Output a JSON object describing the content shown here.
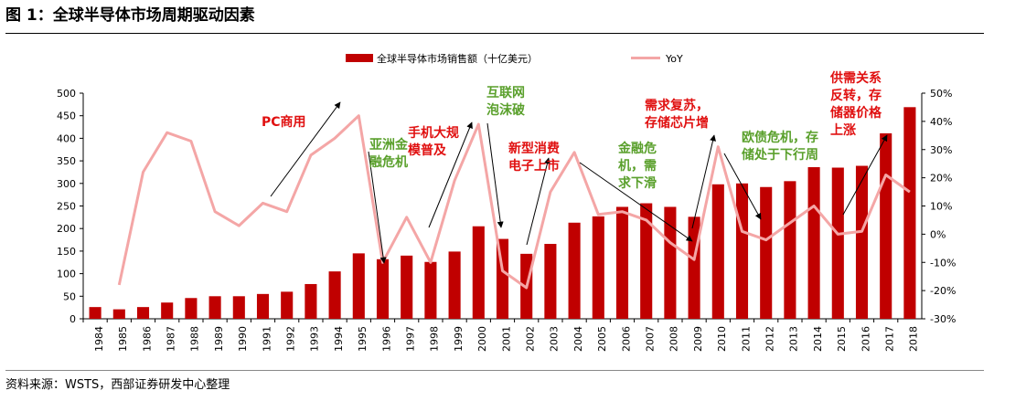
{
  "header": {
    "title": "图 1：全球半导体市场周期驱动因素"
  },
  "footer": {
    "source": "资料来源：WSTS，西部证券研发中心整理"
  },
  "colors": {
    "bar": "#c00000",
    "line": "#f4a6a6",
    "annotation_red": "#e01010",
    "annotation_green": "#5aa02c"
  },
  "chart_data": {
    "type": "bar",
    "categories": [
      "1984",
      "1985",
      "1986",
      "1987",
      "1988",
      "1989",
      "1990",
      "1991",
      "1992",
      "1993",
      "1994",
      "1995",
      "1996",
      "1997",
      "1998",
      "1999",
      "2000",
      "2001",
      "2002",
      "2003",
      "2004",
      "2005",
      "2006",
      "2007",
      "2008",
      "2009",
      "2010",
      "2011",
      "2012",
      "2013",
      "2014",
      "2015",
      "2016",
      "2017",
      "2018"
    ],
    "series": [
      {
        "name": "全球半导体市场销售额（十亿美元）",
        "type": "bar",
        "axis": "left",
        "values": [
          26,
          21,
          26,
          36,
          46,
          50,
          50,
          55,
          60,
          77,
          105,
          145,
          132,
          140,
          126,
          149,
          205,
          177,
          144,
          166,
          213,
          227,
          248,
          256,
          248,
          226,
          298,
          300,
          292,
          305,
          336,
          335,
          339,
          411,
          469
        ]
      },
      {
        "name": "YoY",
        "type": "line",
        "axis": "right",
        "unit": "%",
        "values": [
          null,
          -18,
          22,
          36,
          33,
          8,
          3,
          11,
          8,
          28,
          34,
          42,
          -10,
          6,
          -10,
          19,
          39,
          -13,
          -19,
          15,
          29,
          7,
          8,
          5,
          -3,
          -9,
          31,
          1,
          -2,
          4,
          10,
          0,
          1,
          21,
          15
        ]
      }
    ],
    "y_left": {
      "ylim": [
        0,
        500
      ],
      "ticks": [
        "0",
        "50",
        "100",
        "150",
        "200",
        "250",
        "300",
        "350",
        "400",
        "450",
        "500"
      ]
    },
    "y_right": {
      "ylim": [
        -30,
        50
      ],
      "ticks": [
        "-30%",
        "-20%",
        "-10%",
        "0%",
        "10%",
        "20%",
        "30%",
        "40%",
        "50%"
      ]
    },
    "legend": {
      "placement": "top-center"
    },
    "grid": false,
    "annotations": [
      {
        "text": "PC商用",
        "color": "red"
      },
      {
        "text": "亚洲金",
        "color": "green"
      },
      {
        "text": "融危机",
        "color": "green"
      },
      {
        "text": "手机大规",
        "color": "red"
      },
      {
        "text": "模普及",
        "color": "red"
      },
      {
        "text": "互联网",
        "color": "green"
      },
      {
        "text": "泡沫破",
        "color": "green"
      },
      {
        "text": "新型消费",
        "color": "red"
      },
      {
        "text": "电子上市",
        "color": "red"
      },
      {
        "text": "金融危",
        "color": "green"
      },
      {
        "text": "机，需",
        "color": "green"
      },
      {
        "text": "求下滑",
        "color": "green"
      },
      {
        "text": "需求复苏，",
        "color": "red"
      },
      {
        "text": "存储芯片增",
        "color": "red"
      },
      {
        "text": "欧债危机，存",
        "color": "green"
      },
      {
        "text": "储处于下行周",
        "color": "green"
      },
      {
        "text": "供需关系",
        "color": "red"
      },
      {
        "text": "反转，存",
        "color": "red"
      },
      {
        "text": "储器价格",
        "color": "red"
      },
      {
        "text": "上涨",
        "color": "red"
      }
    ]
  }
}
